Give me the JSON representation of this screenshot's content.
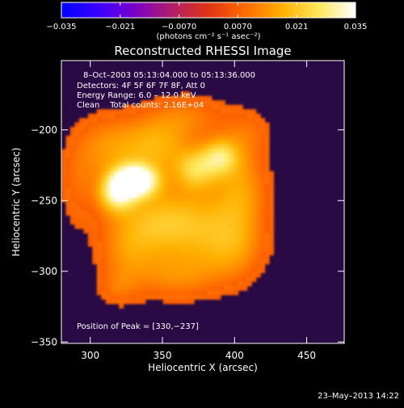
{
  "colorbar": {
    "tick_labels": [
      "−0.035",
      "−0.021",
      "−0.0070",
      "0.0070",
      "0.021",
      "0.035"
    ],
    "tick_values": [
      -0.035,
      -0.021,
      -0.007,
      0.007,
      0.021,
      0.035
    ],
    "unit_label": "(photons cm⁻² s⁻¹ asec⁻²)",
    "stops": [
      "#0000ff",
      "#3a00ff",
      "#7a00c8",
      "#b01e6a",
      "#e03414",
      "#ff6a00",
      "#ffb000",
      "#ffe85a",
      "#ffffff"
    ]
  },
  "chart_data": {
    "type": "heatmap",
    "title": "Reconstructed RHESSI Image",
    "xlabel": "Heliocentric X (arcsec)",
    "ylabel": "Heliocentric Y (arcsec)",
    "xlim": [
      280,
      476
    ],
    "ylim": [
      -351,
      -151
    ],
    "x_ticks": [
      300,
      350,
      400,
      450
    ],
    "y_ticks": [
      -200,
      -250,
      -300,
      -350
    ],
    "x_tick_labels": [
      "300",
      "350",
      "400",
      "450"
    ],
    "y_tick_labels": [
      "−200",
      "−250",
      "−300",
      "−350"
    ],
    "annotations": [
      "8–Oct–2003 05:13:04.000 to 05:13:36.000",
      "Detectors: 4F 5F 6F 7F 8F, Att 0",
      "Energy Range: 6.0 – 12.0 keV",
      "Clean    Total counts: 2.16E+04"
    ],
    "peak_label": "Position of Peak = [330,−237]",
    "peak": [
      330,
      -237
    ],
    "background_color": "#2a0a44",
    "sources": [
      {
        "x": 331,
        "y": -236,
        "sx": 11,
        "sy": 8,
        "amp": 0.04
      },
      {
        "x": 318,
        "y": -246,
        "sx": 9,
        "sy": 9,
        "amp": 0.022
      },
      {
        "x": 310,
        "y": -213,
        "sx": 16,
        "sy": 18,
        "amp": 0.012
      },
      {
        "x": 345,
        "y": -212,
        "sx": 18,
        "sy": 14,
        "amp": 0.016
      },
      {
        "x": 373,
        "y": -228,
        "sx": 10,
        "sy": 10,
        "amp": 0.018
      },
      {
        "x": 390,
        "y": -219,
        "sx": 9,
        "sy": 9,
        "amp": 0.02
      },
      {
        "x": 367,
        "y": -190,
        "sx": 22,
        "sy": 12,
        "amp": 0.01
      },
      {
        "x": 405,
        "y": -240,
        "sx": 14,
        "sy": 22,
        "amp": 0.013
      },
      {
        "x": 345,
        "y": -265,
        "sx": 24,
        "sy": 17,
        "amp": 0.014
      },
      {
        "x": 375,
        "y": -270,
        "sx": 25,
        "sy": 24,
        "amp": 0.012
      },
      {
        "x": 400,
        "y": -285,
        "sx": 16,
        "sy": 18,
        "amp": 0.01
      },
      {
        "x": 325,
        "y": -290,
        "sx": 15,
        "sy": 18,
        "amp": 0.01
      },
      {
        "x": 360,
        "y": -305,
        "sx": 20,
        "sy": 12,
        "amp": 0.009
      },
      {
        "x": 290,
        "y": -240,
        "sx": 9,
        "sy": 22,
        "amp": 0.007
      },
      {
        "x": 318,
        "y": -313,
        "sx": 10,
        "sy": 9,
        "amp": 0.006
      },
      {
        "x": 410,
        "y": -202,
        "sx": 12,
        "sy": 12,
        "amp": 0.007
      }
    ]
  },
  "footer": {
    "timestamp": "23–May–2013 14:22"
  }
}
